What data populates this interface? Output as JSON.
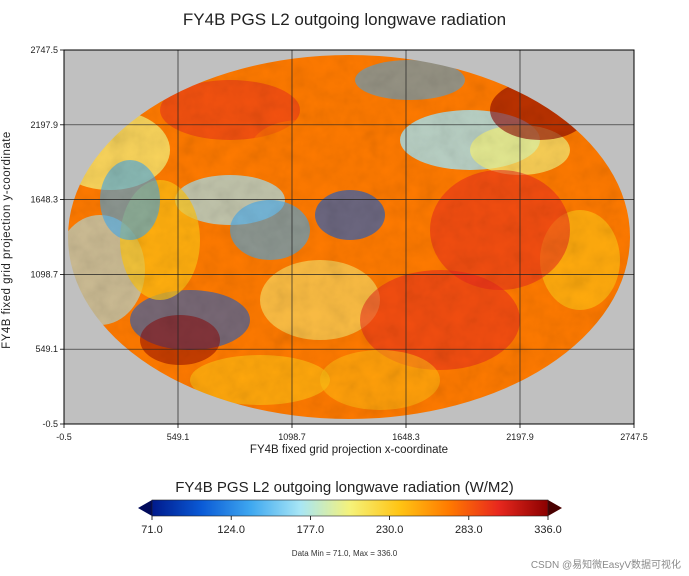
{
  "chart_data": {
    "type": "heatmap",
    "title": "FY4B PGS L2 outgoing longwave radiation",
    "xlabel": "FY4B fixed grid projection x-coordinate",
    "ylabel": "FY4B fixed grid projection y-coordinate",
    "xlim": [
      -0.5,
      2747.5
    ],
    "ylim": [
      -0.5,
      2747.5
    ],
    "x_ticks": [
      "-0.5",
      "549.1",
      "1098.7",
      "1648.3",
      "2197.9",
      "2747.5"
    ],
    "y_ticks": [
      "-0.5",
      "549.1",
      "1098.7",
      "1648.3",
      "2197.9",
      "2747.5"
    ],
    "grid": true,
    "background_color": "#c0c0c0",
    "colorbar": {
      "title": "FY4B PGS L2 outgoing longwave radiation (W/M2)",
      "min": 71.0,
      "max": 336.0,
      "ticks": [
        "71.0",
        "124.0",
        "177.0",
        "230.0",
        "283.0",
        "336.0"
      ],
      "colors": [
        "#001a8c",
        "#0a5ad6",
        "#3fa8f0",
        "#a8e6f5",
        "#f5f27a",
        "#ffc414",
        "#ff7a00",
        "#e8281e",
        "#8b0000"
      ]
    },
    "data_stats": "Data Min = 71.0, Max = 336.0"
  },
  "watermark": "CSDN @易知微EasyV数据可视化"
}
